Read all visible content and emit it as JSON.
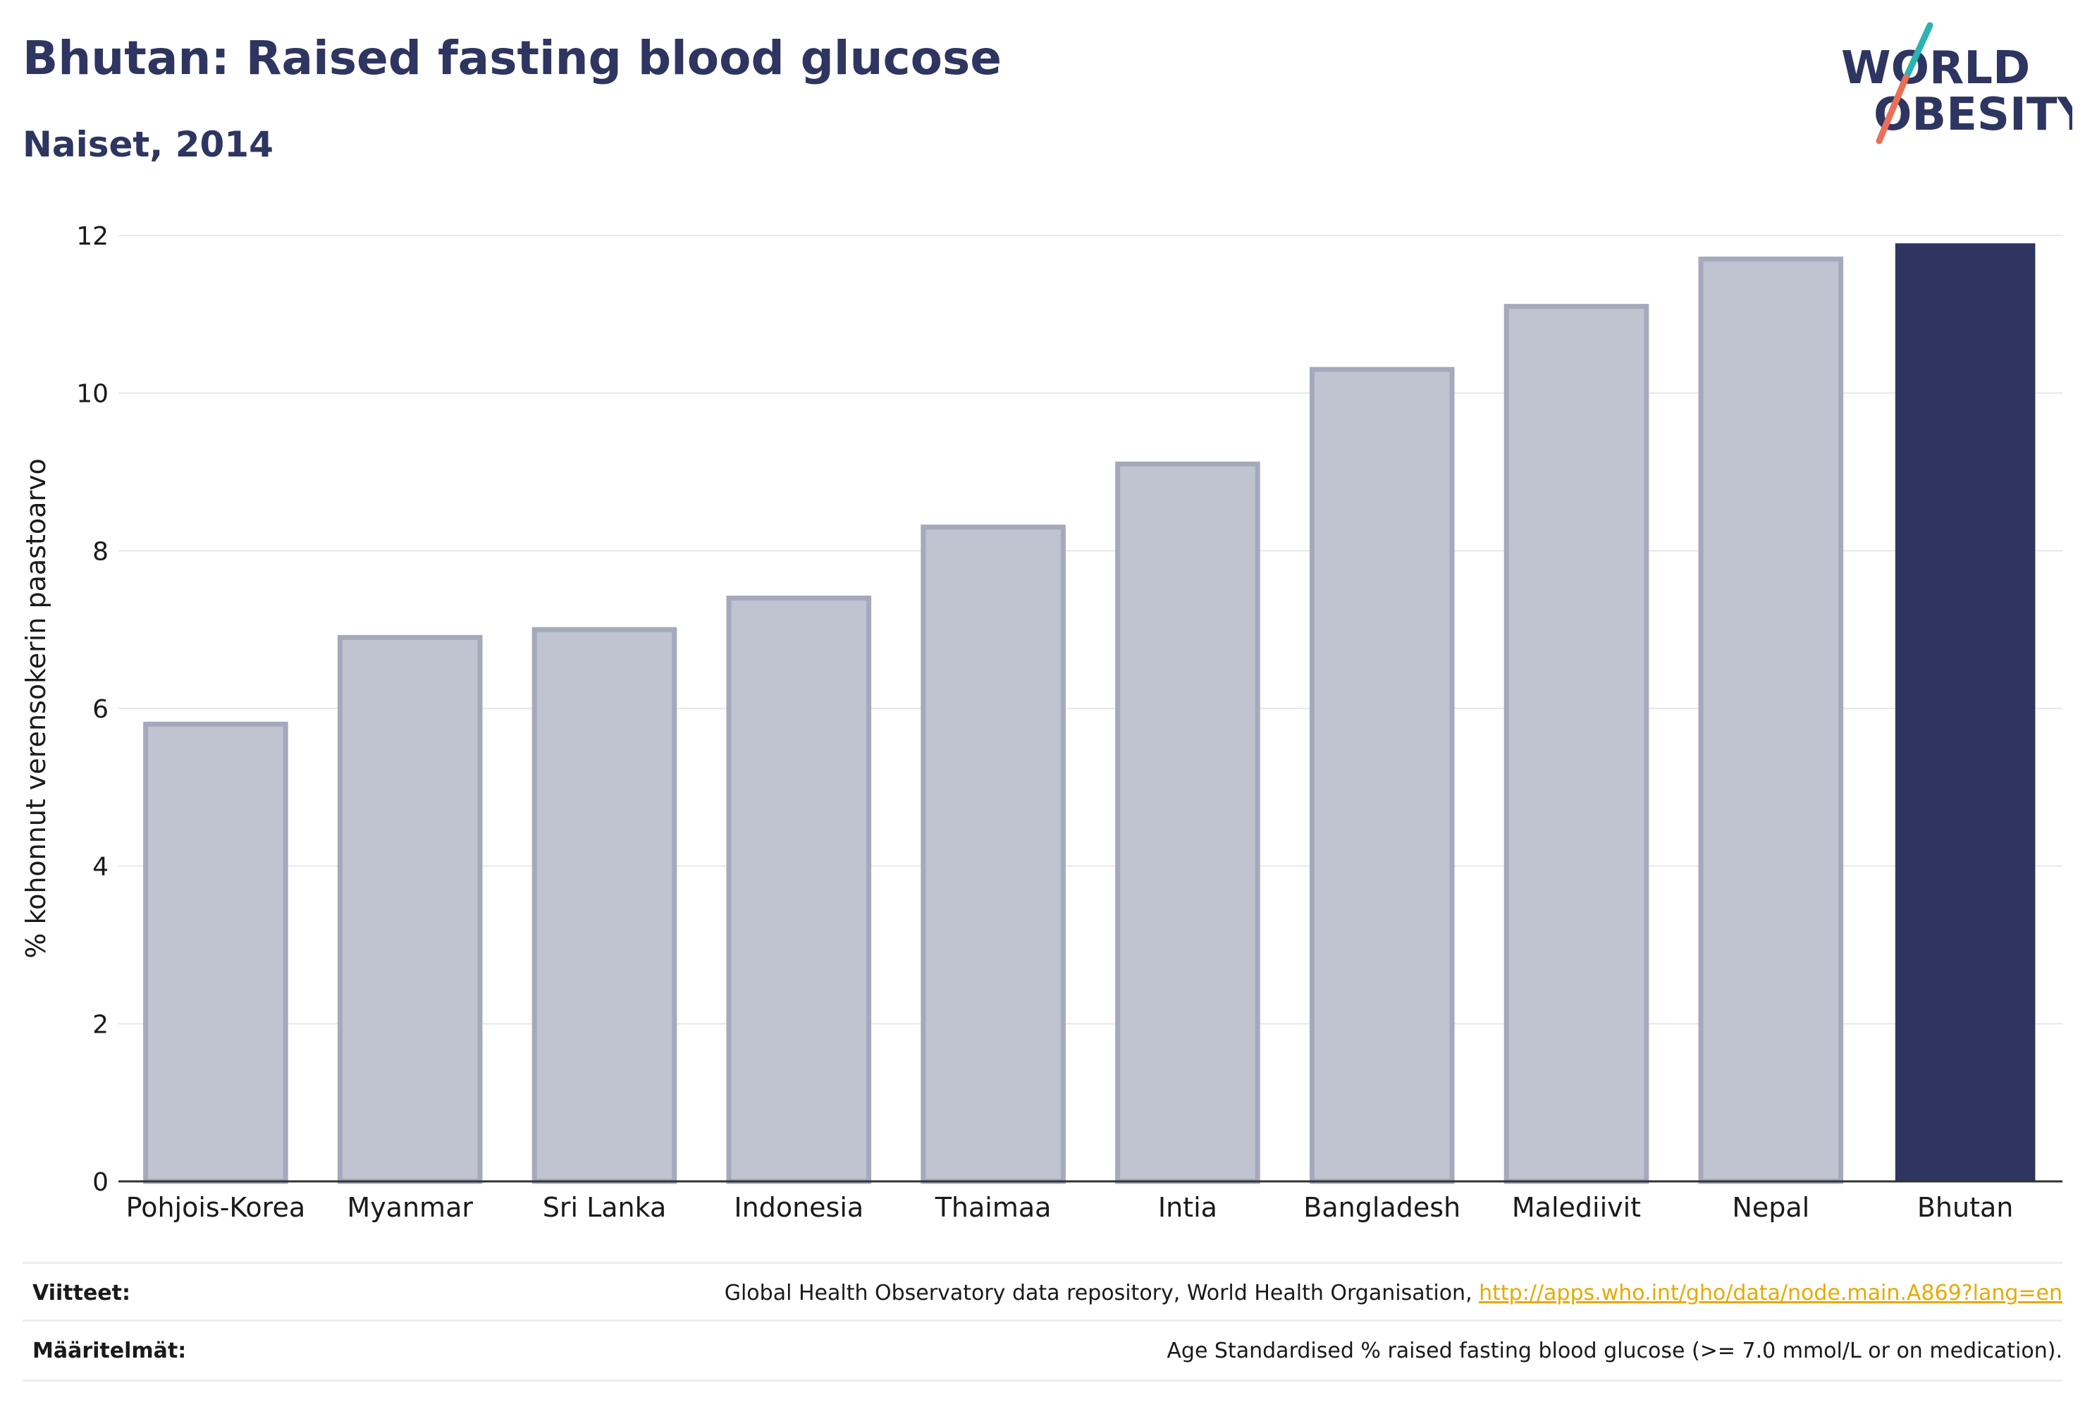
{
  "header": {
    "title": "Bhutan: Raised fasting blood glucose",
    "subtitle": "Naiset, 2014"
  },
  "logo": {
    "line1": "WORLD",
    "line2": "OBESITY",
    "colors": {
      "text": "#2d3560",
      "slash_teal": "#2bb3b1",
      "slash_red": "#e8705a"
    }
  },
  "chart_data": {
    "type": "bar",
    "title": "Bhutan: Raised fasting blood glucose",
    "subtitle": "Naiset, 2014",
    "xlabel": "",
    "ylabel": "% kohonnut verensokerin paastoarvo",
    "ylim": [
      0,
      12
    ],
    "yticks": [
      0,
      2,
      4,
      6,
      8,
      10,
      12
    ],
    "grid": true,
    "categories": [
      "Pohjois-Korea",
      "Myanmar",
      "Sri Lanka",
      "Indonesia",
      "Thaimaa",
      "Intia",
      "Bangladesh",
      "Malediivit",
      "Nepal",
      "Bhutan"
    ],
    "values": [
      5.8,
      6.9,
      7.0,
      7.4,
      8.3,
      9.1,
      10.3,
      11.1,
      11.7,
      11.9
    ],
    "highlight": "Bhutan",
    "colors": {
      "bar": "#c0c3d0",
      "bar_border": "#a5a9bc",
      "highlight": "#2d3560",
      "grid": "#e6e8ee",
      "axis": "#333333"
    }
  },
  "footer": {
    "sources_label": "Viitteet:",
    "sources_text": "Global Health Observatory data repository, World Health Organisation, ",
    "sources_link": "http://apps.who.int/gho/data/node.main.A869?lang=en",
    "definitions_label": "Määritelmät:",
    "definitions_text": "Age Standardised % raised fasting blood glucose (>= 7.0 mmol/L or on medication)."
  }
}
